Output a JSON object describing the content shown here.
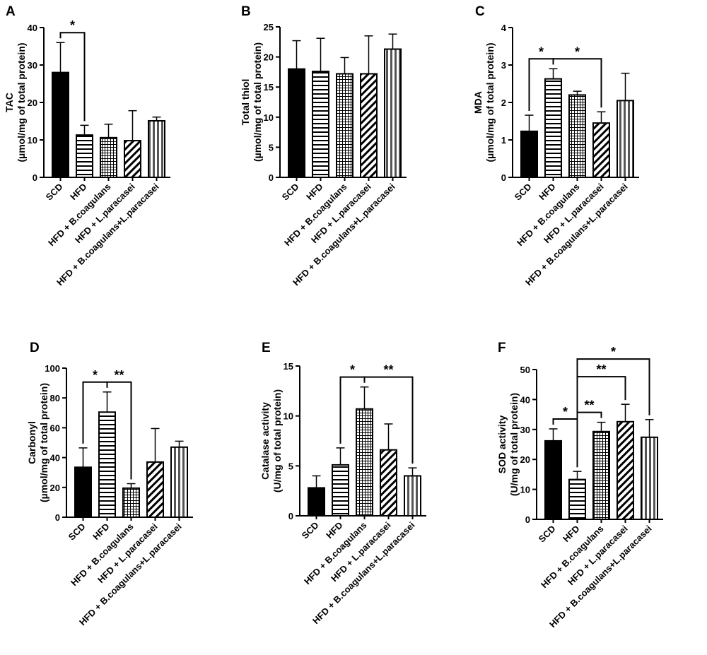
{
  "chart_data": [
    {
      "panel": "A",
      "type": "bar",
      "categories": [
        "SCD",
        "HFD",
        "HFD + B.coagulans",
        "HFD + L.paracasei",
        "HFD + B.coagulans+L.paracasei"
      ],
      "values": [
        28,
        11.3,
        10.6,
        9.8,
        15.1
      ],
      "errors": [
        8,
        2.6,
        3.6,
        8,
        1
      ],
      "ylabel_main": "TAC",
      "ylabel_unit": "(µmol/mg of total protein)",
      "ylim": [
        0,
        40
      ],
      "yticks": [
        "0",
        "10",
        "20",
        "30",
        "40"
      ],
      "significance": [
        {
          "from": 0,
          "to": 1,
          "label": "*",
          "level": 0
        }
      ]
    },
    {
      "panel": "B",
      "type": "bar",
      "categories": [
        "SCD",
        "HFD",
        "HFD + B.coagulans",
        "HFD + L.paracasei",
        "HFD + B.coagulans+L.paracasei"
      ],
      "values": [
        18,
        17.6,
        17.2,
        17.2,
        21.3
      ],
      "errors": [
        4.7,
        5.5,
        2.7,
        6.3,
        2.5
      ],
      "ylabel_main": "Total thiol",
      "ylabel_unit": "(µmol/mg of total protein)",
      "ylim": [
        0,
        25
      ],
      "yticks": [
        "0",
        "5",
        "10",
        "15",
        "20",
        "25"
      ],
      "significance": []
    },
    {
      "panel": "C",
      "type": "bar",
      "categories": [
        "SCD",
        "HFD",
        "HFD + B.coagulans",
        "HFD + L.paracasei",
        "HFD + B.coagulans+L.paracasei"
      ],
      "values": [
        1.23,
        2.63,
        2.2,
        1.45,
        2.05
      ],
      "errors": [
        0.43,
        0.27,
        0.1,
        0.3,
        0.73
      ],
      "ylabel_main": "MDA",
      "ylabel_unit": "(µmol/mg of total protein)",
      "ylim": [
        0,
        4
      ],
      "yticks": [
        "0",
        "1",
        "2",
        "3",
        "4"
      ],
      "significance": [
        {
          "from": 0,
          "to": 1,
          "label": "*",
          "level": 0
        },
        {
          "from": 1,
          "to": 3,
          "label": "*",
          "level": 0
        }
      ]
    },
    {
      "panel": "D",
      "type": "bar",
      "categories": [
        "SCD",
        "HFD",
        "HFD + B.coagulans",
        "HFD + L.paracasei",
        "HFD + B.coagulans+L.paracasei"
      ],
      "values": [
        33.5,
        70.5,
        19.5,
        37,
        47
      ],
      "errors": [
        13,
        13.5,
        3,
        22.5,
        4
      ],
      "ylabel_main": "Carbonyl",
      "ylabel_unit": "(µmol/mg of total protein)",
      "ylim": [
        0,
        100
      ],
      "yticks": [
        "0",
        "20",
        "40",
        "60",
        "80",
        "100"
      ],
      "significance": [
        {
          "from": 0,
          "to": 1,
          "label": "*",
          "level": 0
        },
        {
          "from": 1,
          "to": 2,
          "label": "**",
          "level": 0
        }
      ]
    },
    {
      "panel": "E",
      "type": "bar",
      "categories": [
        "SCD",
        "HFD",
        "HFD + B.coagulans",
        "HFD + L.paracasei",
        "HFD + B.coagulans+L.paracasei"
      ],
      "values": [
        2.8,
        5.1,
        10.7,
        6.6,
        4.0
      ],
      "errors": [
        1.2,
        1.7,
        2.2,
        2.6,
        0.8
      ],
      "ylabel_main": "Catalase activity",
      "ylabel_unit": "(U/mg of total protein)",
      "ylim": [
        0,
        15
      ],
      "yticks": [
        "0",
        "5",
        "10",
        "15"
      ],
      "significance": [
        {
          "from": 1,
          "to": 2,
          "label": "*",
          "level": 0
        },
        {
          "from": 2,
          "to": 4,
          "label": "**",
          "level": 0
        }
      ]
    },
    {
      "panel": "F",
      "type": "bar",
      "categories": [
        "SCD",
        "HFD",
        "HFD + B.coagulans",
        "HFD + L.paracasei",
        "HFD + B.coagulans+L.paracasei"
      ],
      "values": [
        26.2,
        13.3,
        29.3,
        32.6,
        27.4
      ],
      "errors": [
        4,
        2.7,
        3.1,
        5.8,
        5.9
      ],
      "ylabel_main": "SOD activity",
      "ylabel_unit": "(U/mg of total protein)",
      "ylim": [
        0,
        50
      ],
      "yticks": [
        "0",
        "10",
        "20",
        "30",
        "40",
        "50"
      ],
      "significance": [
        {
          "from": 0,
          "to": 1,
          "label": "*",
          "level": 0
        },
        {
          "from": 1,
          "to": 2,
          "label": "**",
          "level": 0
        },
        {
          "from": 1,
          "to": 3,
          "label": "**",
          "level": 1
        },
        {
          "from": 1,
          "to": 4,
          "label": "*",
          "level": 2
        }
      ]
    }
  ]
}
